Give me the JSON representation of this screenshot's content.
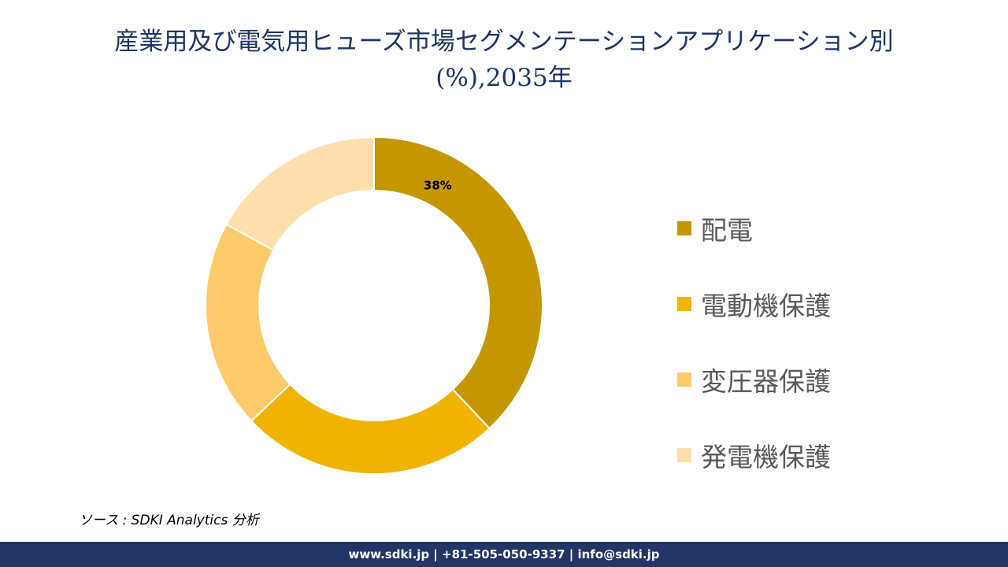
{
  "chart_data": {
    "type": "pie",
    "variant": "donut",
    "title": "産業用及び電気用ヒューズ市場セグメンテーションアプリケーション別(%),2035年",
    "title_lines": [
      "産業用及び電気用ヒューズ市場セグメンテーションアプリケーション別",
      "(%),2035年"
    ],
    "categories": [
      "配電",
      "電動機保護",
      "変圧器保護",
      "発電機保護"
    ],
    "values": [
      38,
      25,
      20,
      17
    ],
    "data_labels": [
      "38%",
      "",
      "",
      ""
    ],
    "colors": [
      "#c49700",
      "#f0b400",
      "#fdca6b",
      "#fddfad"
    ],
    "legend_position": "right"
  },
  "source": "ソース : SDKI Analytics  分析",
  "footer": {
    "contact": "www.sdki.jp | +81-505-050-9337 | info@sdki.jp"
  }
}
